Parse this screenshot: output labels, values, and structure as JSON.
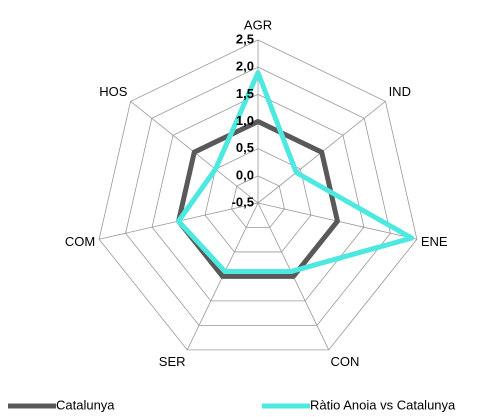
{
  "chart_data": {
    "type": "radar",
    "categories": [
      "AGR",
      "IND",
      "ENE",
      "CON",
      "SER",
      "COM",
      "HOS"
    ],
    "series": [
      {
        "name": "Catalunya",
        "color": "#595959",
        "values": [
          1.0,
          1.0,
          1.0,
          1.0,
          1.0,
          1.0,
          1.0
        ]
      },
      {
        "name": "Ràtio Anoia vs Catalunya",
        "color": "#4de8e0",
        "values": [
          1.9,
          0.4,
          2.4,
          0.9,
          0.9,
          1.0,
          0.5
        ]
      }
    ],
    "ylim": [
      -0.5,
      2.5
    ],
    "yticks": [
      {
        "value": -0.5,
        "label": "-0,5"
      },
      {
        "value": 0,
        "label": "0,0"
      },
      {
        "value": 0.5,
        "label": "0,5"
      },
      {
        "value": 1.0,
        "label": "1,0"
      },
      {
        "value": 1.5,
        "label": "1,5"
      },
      {
        "value": 2.0,
        "label": "2,0"
      },
      {
        "value": 2.5,
        "label": "2,5"
      }
    ],
    "grid": true
  }
}
